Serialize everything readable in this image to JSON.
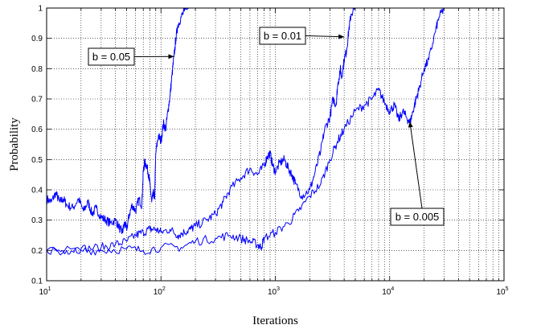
{
  "chart_data": {
    "type": "line",
    "title": "",
    "xlabel": "Iterations",
    "ylabel": "Probability",
    "xscale": "log",
    "xlim": [
      10,
      100000
    ],
    "ylim": [
      0.1,
      1
    ],
    "grid": true,
    "grid_style": "dotted",
    "x_ticks": [
      10,
      100,
      1000,
      10000,
      100000
    ],
    "x_tick_labels": [
      {
        "base": "10",
        "exp": "1"
      },
      {
        "base": "10",
        "exp": "2"
      },
      {
        "base": "10",
        "exp": "3"
      },
      {
        "base": "10",
        "exp": "4"
      },
      {
        "base": "10",
        "exp": "5"
      }
    ],
    "y_ticks": [
      0.1,
      0.2,
      0.3,
      0.4,
      0.5,
      0.6,
      0.7,
      0.8,
      0.9,
      1
    ],
    "y_tick_labels": [
      "0.1",
      "0.2",
      "0.3",
      "0.4",
      "0.5",
      "0.6",
      "0.7",
      "0.8",
      "0.9",
      "1"
    ],
    "line_color": "#0000ff",
    "series": [
      {
        "key": "b005",
        "x": [
          10,
          11,
          12,
          13,
          14,
          15,
          17,
          19,
          21,
          23,
          25,
          27,
          30,
          33,
          36,
          40,
          44,
          46,
          48,
          50,
          53,
          56,
          60,
          64,
          68,
          70,
          72,
          75,
          78,
          80,
          83,
          86,
          88,
          90,
          95,
          100,
          105,
          110,
          115,
          120,
          125,
          130,
          135,
          140,
          150,
          160,
          175,
          200,
          250,
          30000
        ],
        "y": [
          0.37,
          0.36,
          0.39,
          0.36,
          0.37,
          0.35,
          0.34,
          0.37,
          0.33,
          0.36,
          0.32,
          0.34,
          0.31,
          0.3,
          0.29,
          0.3,
          0.27,
          0.26,
          0.29,
          0.27,
          0.32,
          0.35,
          0.33,
          0.37,
          0.35,
          0.46,
          0.49,
          0.48,
          0.45,
          0.42,
          0.36,
          0.39,
          0.37,
          0.52,
          0.58,
          0.56,
          0.62,
          0.6,
          0.66,
          0.71,
          0.78,
          0.84,
          0.9,
          0.94,
          0.97,
          0.99,
          1.0,
          1.0,
          1.0,
          1.0
        ]
      },
      {
        "key": "b001",
        "x": [
          10,
          15,
          20,
          30,
          40,
          50,
          60,
          70,
          80,
          90,
          100,
          120,
          140,
          160,
          180,
          200,
          250,
          300,
          350,
          400,
          500,
          600,
          700,
          800,
          850,
          900,
          950,
          1000,
          1100,
          1200,
          1300,
          1400,
          1500,
          1700,
          2000,
          2200,
          2500,
          2700,
          3000,
          3200,
          3400,
          3500,
          3700,
          3800,
          4000,
          4200,
          4400,
          4600,
          5000,
          6000,
          10000,
          30000
        ],
        "y": [
          0.2,
          0.2,
          0.205,
          0.21,
          0.22,
          0.23,
          0.25,
          0.26,
          0.27,
          0.27,
          0.26,
          0.27,
          0.25,
          0.26,
          0.27,
          0.28,
          0.3,
          0.32,
          0.36,
          0.4,
          0.44,
          0.47,
          0.45,
          0.48,
          0.51,
          0.52,
          0.48,
          0.46,
          0.49,
          0.5,
          0.47,
          0.45,
          0.42,
          0.38,
          0.4,
          0.45,
          0.53,
          0.6,
          0.64,
          0.7,
          0.68,
          0.74,
          0.8,
          0.77,
          0.83,
          0.86,
          0.93,
          0.98,
          1.0,
          1.0,
          1.0,
          1.0
        ]
      },
      {
        "key": "b0005",
        "x": [
          10,
          20,
          30,
          50,
          70,
          100,
          150,
          200,
          300,
          400,
          500,
          600,
          700,
          750,
          800,
          1000,
          1300,
          1600,
          2000,
          2500,
          3000,
          3500,
          4000,
          5000,
          6000,
          7000,
          8000,
          9000,
          10000,
          11000,
          12000,
          13000,
          14000,
          15000,
          16000,
          17000,
          18000,
          20000,
          22000,
          25000,
          27000,
          30000
        ],
        "y": [
          0.2,
          0.2,
          0.2,
          0.205,
          0.2,
          0.21,
          0.21,
          0.23,
          0.24,
          0.25,
          0.24,
          0.23,
          0.22,
          0.21,
          0.24,
          0.26,
          0.29,
          0.33,
          0.38,
          0.42,
          0.5,
          0.56,
          0.6,
          0.66,
          0.68,
          0.7,
          0.73,
          0.69,
          0.66,
          0.68,
          0.63,
          0.66,
          0.64,
          0.62,
          0.66,
          0.7,
          0.73,
          0.8,
          0.83,
          0.92,
          0.97,
          1.0
        ]
      }
    ],
    "annotations": [
      {
        "text": "b = 0.05",
        "target": {
          "x": 130,
          "y": 0.84
        }
      },
      {
        "text": "b = 0.01",
        "target": {
          "x": 4000,
          "y": 0.905
        }
      },
      {
        "text": "b = 0.005",
        "target": {
          "x": 15000,
          "y": 0.625
        }
      }
    ]
  }
}
